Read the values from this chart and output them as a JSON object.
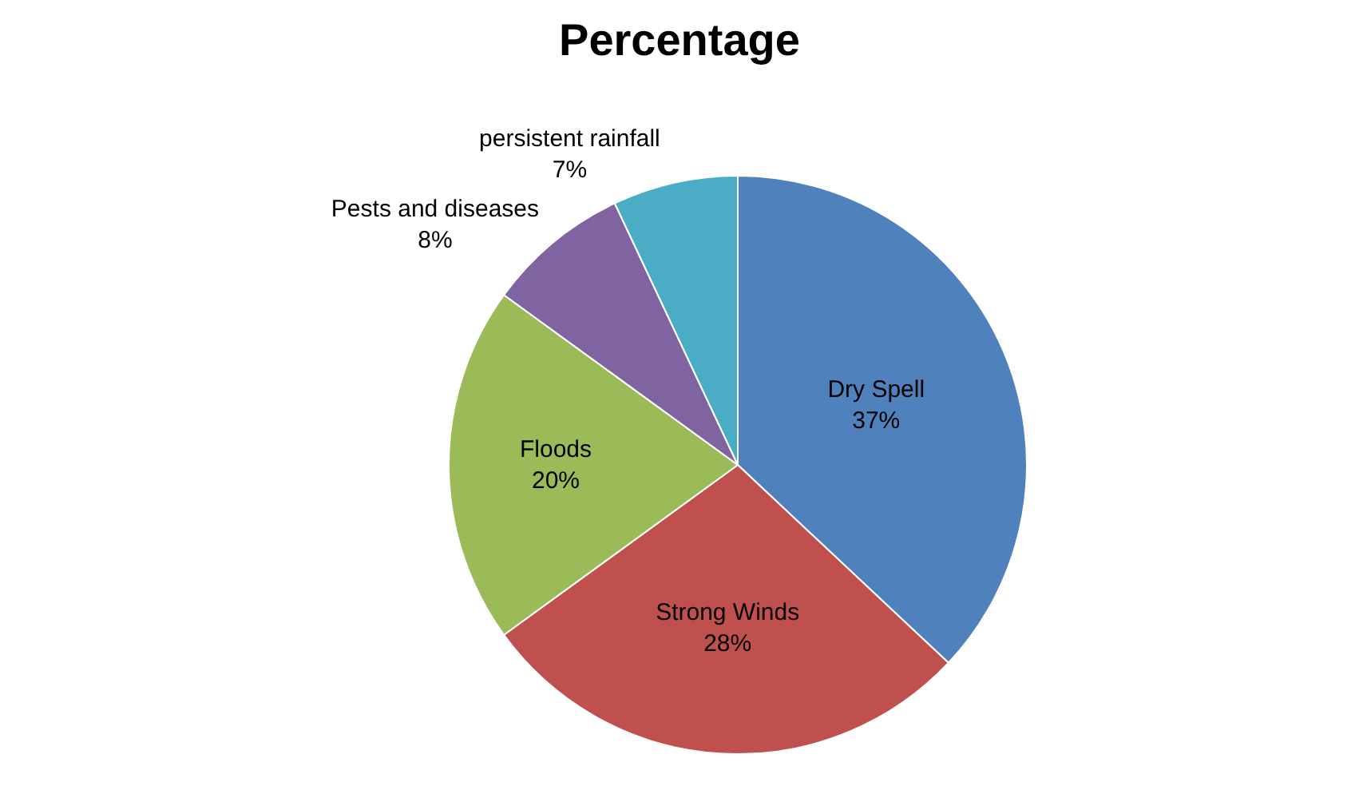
{
  "chart_data": {
    "type": "pie",
    "title": "Percentage",
    "categories": [
      "Dry Spell",
      "Strong Winds",
      "Floods",
      "Pests and diseases",
      "persistent rainfall"
    ],
    "values": [
      37,
      28,
      20,
      8,
      7
    ],
    "value_labels": [
      "37%",
      "28%",
      "20%",
      "8%",
      "7%"
    ],
    "colors": [
      "#4f81bd",
      "#c0504d",
      "#9bbb59",
      "#8064a2",
      "#4bacc6"
    ],
    "legend": false
  }
}
